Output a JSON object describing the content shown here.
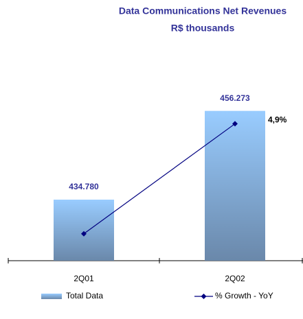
{
  "chart_data": {
    "type": "bar",
    "title": "Data Communications Net Revenues",
    "subtitle": "R$ thousands",
    "categories": [
      "2Q01",
      "2Q02"
    ],
    "series": [
      {
        "name": "Total Data",
        "type": "bar",
        "color": "#99ccff",
        "values": [
          434780,
          456273
        ],
        "value_labels": [
          "434.780",
          "456.273"
        ]
      },
      {
        "name": "% Growth - YoY",
        "type": "line",
        "axis": "y2",
        "color": "#000080",
        "values": [
          0,
          4.9
        ],
        "value_labels": [
          null,
          "4,9%"
        ]
      }
    ],
    "ylim": [
      420000,
      470000
    ],
    "y2lim": [
      -1.2,
      8
    ]
  }
}
